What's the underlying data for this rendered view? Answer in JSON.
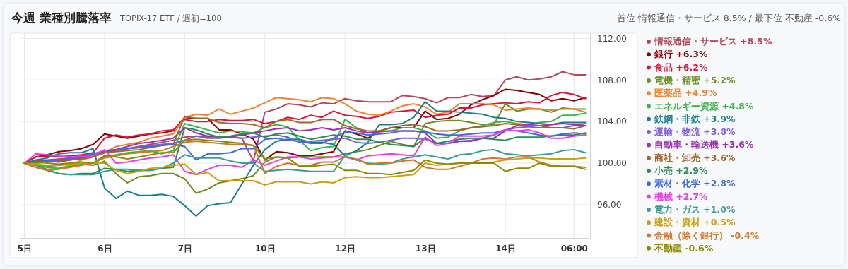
{
  "chart_data": {
    "type": "line",
    "title": "今週 業種別騰落率",
    "subtitle": "TOPIX-17 ETF / 週初=100",
    "annotations": [
      "首位 情報通信・サービス 8.5% / 最下位 不動産 -0.6%"
    ],
    "categories": [
      "5日",
      null,
      null,
      null,
      null,
      null,
      null,
      "6日",
      null,
      null,
      null,
      null,
      null,
      null,
      "7日",
      null,
      null,
      null,
      null,
      null,
      null,
      "10日",
      null,
      null,
      null,
      null,
      null,
      null,
      "12日",
      null,
      null,
      null,
      null,
      null,
      null,
      "13日",
      null,
      null,
      null,
      null,
      null,
      null,
      "14日",
      null,
      null,
      null,
      null,
      null,
      "06:00",
      null
    ],
    "ylim": [
      92.8,
      112.5
    ],
    "yticks": [
      {
        "value": 96,
        "label": "96.00"
      },
      {
        "value": 100,
        "label": "100.00"
      },
      {
        "value": 104,
        "label": "104.00"
      },
      {
        "value": 108,
        "label": "108.00"
      },
      {
        "value": 112,
        "label": "112.00"
      }
    ],
    "grid": true,
    "legend": "right",
    "marker": "none",
    "line_style": "solid",
    "series": [
      {
        "name": "情報通信・サービス +8.5%",
        "color": "#b5495b",
        "values": [
          100,
          100.2,
          100.3,
          100.4,
          100.5,
          100.6,
          100.8,
          101.0,
          101.2,
          101.4,
          101.6,
          101.8,
          102.0,
          102.2,
          102.5,
          102.6,
          102.5,
          102.6,
          102.5,
          102.4,
          100.2,
          104.9,
          105.2,
          105.7,
          105.6,
          105.4,
          105.8,
          105.7,
          106.2,
          106.0,
          105.9,
          105.9,
          105.9,
          106.5,
          106.4,
          106.2,
          105.8,
          106.3,
          106.3,
          106.6,
          106.4,
          106.5,
          108.0,
          108.3,
          108.0,
          108.1,
          108.3,
          108.8,
          108.5,
          108.5
        ]
      },
      {
        "name": "銀行 +6.3%",
        "color": "#8b0000",
        "values": [
          100,
          100.6,
          100.8,
          101.1,
          101.2,
          101.4,
          101.8,
          102.8,
          102.6,
          102.4,
          102.6,
          102.8,
          102.9,
          103.1,
          104.4,
          104.3,
          104.3,
          103.2,
          103.2,
          102.8,
          102.3,
          100.3,
          101.1,
          101.0,
          100.7,
          100.7,
          100.9,
          101.1,
          103.1,
          102.8,
          102.4,
          103.1,
          103.4,
          103.4,
          103.4,
          105.0,
          104.2,
          104.3,
          104.7,
          105.6,
          106.1,
          106.5,
          107.1,
          107.0,
          106.8,
          106.6,
          106.0,
          106.2,
          106.0,
          106.3
        ]
      },
      {
        "name": "食品 +6.2%",
        "color": "#dc143c",
        "values": [
          100,
          100.6,
          100.7,
          100.6,
          100.7,
          100.8,
          101.0,
          102.4,
          102.7,
          102.5,
          102.7,
          102.8,
          103.1,
          103.2,
          104.2,
          104.0,
          104.0,
          104.2,
          104.1,
          104.1,
          104.2,
          103.8,
          104.0,
          104.4,
          104.2,
          104.6,
          104.4,
          105.0,
          104.6,
          104.5,
          104.3,
          104.5,
          104.9,
          105.0,
          105.1,
          104.4,
          104.6,
          104.7,
          105.3,
          105.3,
          105.6,
          105.7,
          105.8,
          105.7,
          105.9,
          105.8,
          106.5,
          106.8,
          106.6,
          106.2
        ]
      },
      {
        "name": "電機・精密 +5.2%",
        "color": "#6b8e23",
        "values": [
          100,
          99.8,
          99.7,
          99.8,
          99.9,
          99.9,
          99.8,
          100.2,
          99.0,
          98.1,
          98.7,
          98.8,
          99.0,
          99.0,
          98.5,
          97.1,
          97.5,
          98.1,
          98.3,
          98.5,
          98.8,
          100.1,
          100.6,
          100.5,
          100.6,
          100.6,
          100.6,
          100.6,
          100.9,
          101.1,
          101.3,
          101.7,
          102.1,
          101.8,
          101.6,
          103.8,
          104.0,
          104.1,
          104.1,
          103.9,
          103.7,
          103.7,
          105.7,
          105.0,
          105.2,
          105.2,
          104.9,
          105.3,
          105.2,
          105.2
        ]
      },
      {
        "name": "医薬品 +4.9%",
        "color": "#f58231",
        "values": [
          100,
          99.6,
          99.4,
          99.5,
          99.8,
          100.3,
          100.6,
          101.0,
          101.6,
          101.8,
          102.0,
          102.4,
          102.6,
          102.8,
          104.4,
          104.7,
          104.6,
          105.2,
          104.7,
          105.0,
          105.3,
          105.8,
          106.3,
          106.2,
          106.1,
          105.9,
          106.3,
          106.2,
          105.7,
          105.0,
          104.7,
          104.6,
          105.0,
          105.5,
          105.7,
          105.4,
          104.7,
          104.9,
          105.7,
          105.7,
          105.7,
          105.6,
          105.1,
          105.2,
          105.3,
          105.2,
          105.1,
          105.2,
          105.2,
          104.9
        ]
      },
      {
        "name": "エネルギー資源 +4.8%",
        "color": "#3cb44b",
        "values": [
          100,
          99.8,
          99.6,
          99.5,
          99.7,
          99.9,
          100.0,
          100.6,
          100.8,
          101.0,
          101.1,
          101.2,
          100.9,
          101.2,
          103.8,
          103.5,
          103.2,
          102.9,
          103.1,
          103.0,
          102.9,
          103.4,
          103.7,
          103.5,
          102.2,
          101.2,
          101.5,
          101.6,
          104.2,
          103.4,
          102.9,
          103.1,
          103.1,
          103.4,
          103.4,
          103.1,
          102.4,
          102.5,
          103.1,
          103.4,
          103.6,
          103.9,
          104.0,
          103.8,
          103.7,
          103.9,
          104.0,
          104.6,
          104.6,
          104.8
        ]
      },
      {
        "name": "鉄鋼・非鉄 +3.9%",
        "color": "#1a7f8a",
        "values": [
          100,
          100.3,
          100.5,
          100.9,
          101.0,
          101.0,
          101.4,
          97.6,
          96.6,
          97.3,
          96.9,
          96.9,
          97.0,
          96.8,
          95.9,
          94.9,
          95.9,
          96.1,
          96.2,
          98.0,
          99.8,
          101.3,
          102.1,
          102.3,
          102.3,
          102.0,
          102.0,
          101.8,
          100.7,
          101.2,
          102.0,
          103.7,
          103.7,
          103.8,
          104.4,
          105.9,
          105.0,
          105.0,
          104.9,
          104.8,
          104.7,
          104.4,
          104.3,
          104.0,
          103.9,
          103.8,
          103.7,
          103.9,
          103.9,
          103.9
        ]
      },
      {
        "name": "運輸・物流 +3.8%",
        "color": "#7b5fd6",
        "values": [
          100,
          100.1,
          100.2,
          100.2,
          100.4,
          100.5,
          100.7,
          101.2,
          101.3,
          101.4,
          101.5,
          101.7,
          101.8,
          101.9,
          102.2,
          102.6,
          102.4,
          102.4,
          102.5,
          102.4,
          102.5,
          102.6,
          102.7,
          102.5,
          102.0,
          102.1,
          102.2,
          102.3,
          102.4,
          102.0,
          101.9,
          102.0,
          102.2,
          102.4,
          102.4,
          102.3,
          101.9,
          101.9,
          102.1,
          102.2,
          102.4,
          102.7,
          103.2,
          103.4,
          103.5,
          103.4,
          103.4,
          103.4,
          103.6,
          103.8
        ]
      },
      {
        "name": "自動車・輸送機 +3.6%",
        "color": "#9b30b0",
        "values": [
          100,
          100.1,
          100.2,
          100.1,
          100.3,
          100.5,
          100.7,
          101.1,
          101.3,
          101.6,
          101.9,
          102.0,
          102.2,
          102.4,
          103.4,
          102.9,
          102.6,
          102.5,
          102.5,
          102.7,
          102.9,
          103.1,
          103.3,
          103.4,
          103.1,
          103.2,
          103.4,
          103.2,
          103.4,
          103.1,
          102.9,
          103.0,
          103.1,
          103.1,
          103.1,
          102.9,
          101.9,
          101.9,
          102.1,
          102.1,
          102.4,
          102.4,
          103.1,
          103.6,
          103.7,
          103.6,
          103.7,
          103.8,
          103.7,
          103.6
        ]
      },
      {
        "name": "商社・卸売 +3.6%",
        "color": "#a0662a",
        "values": [
          100,
          100.0,
          100.1,
          100.2,
          100.3,
          100.4,
          100.6,
          101.0,
          101.1,
          101.2,
          101.3,
          101.5,
          101.7,
          101.8,
          104.5,
          104.3,
          104.3,
          103.9,
          103.8,
          103.8,
          103.7,
          103.4,
          104.0,
          104.2,
          103.9,
          103.9,
          104.2,
          104.2,
          103.6,
          103.3,
          103.1,
          103.1,
          103.4,
          103.6,
          103.7,
          103.5,
          103.1,
          103.1,
          103.2,
          103.4,
          103.5,
          103.6,
          103.8,
          103.7,
          103.6,
          103.6,
          103.4,
          103.4,
          103.3,
          103.6
        ]
      },
      {
        "name": "小売 +2.9%",
        "color": "#2e8b57",
        "values": [
          100,
          99.6,
          99.3,
          99.0,
          98.9,
          99.0,
          99.0,
          99.5,
          99.4,
          99.2,
          99.3,
          99.3,
          99.5,
          99.6,
          103.4,
          103.2,
          102.8,
          102.5,
          102.6,
          102.8,
          102.9,
          102.5,
          102.8,
          102.9,
          102.6,
          102.3,
          102.5,
          102.7,
          102.6,
          102.3,
          102.3,
          102.0,
          101.8,
          101.7,
          101.6,
          102.4,
          101.9,
          102.1,
          102.3,
          102.4,
          102.4,
          102.3,
          102.2,
          102.5,
          102.5,
          102.5,
          102.6,
          102.7,
          102.7,
          102.9
        ]
      },
      {
        "name": "素材・化学 +2.8%",
        "color": "#4169e1",
        "values": [
          100,
          100.1,
          100.2,
          100.3,
          100.5,
          100.7,
          100.9,
          101.2,
          101.3,
          101.4,
          101.5,
          101.6,
          101.7,
          101.8,
          101.6,
          100.3,
          100.9,
          100.9,
          101.0,
          101.4,
          101.4,
          102.3,
          102.4,
          102.2,
          102.1,
          101.9,
          101.9,
          102.4,
          103.0,
          102.9,
          102.7,
          102.8,
          102.9,
          103.1,
          103.1,
          103.0,
          102.8,
          102.7,
          102.7,
          102.8,
          102.9,
          102.9,
          103.2,
          103.1,
          102.9,
          102.7,
          102.6,
          102.8,
          102.9,
          102.8
        ]
      },
      {
        "name": "機械 +2.7%",
        "color": "#e83ee8",
        "values": [
          100,
          100.9,
          100.8,
          100.7,
          100.6,
          100.6,
          100.7,
          101.3,
          100.0,
          100.1,
          100.3,
          100.5,
          100.6,
          100.8,
          99.2,
          98.9,
          99.4,
          99.8,
          99.8,
          99.6,
          100.3,
          99.8,
          100.2,
          100.6,
          100.6,
          100.4,
          100.5,
          100.6,
          100.6,
          100.3,
          100.7,
          100.8,
          100.9,
          100.8,
          100.7,
          102.5,
          101.7,
          101.9,
          102.6,
          102.6,
          102.6,
          102.7,
          103.2,
          103.1,
          103.2,
          102.9,
          102.4,
          102.4,
          102.6,
          102.7
        ]
      },
      {
        "name": "電力・ガス +1.0%",
        "color": "#3a9c94",
        "values": [
          100,
          99.8,
          99.4,
          99.0,
          98.9,
          98.9,
          98.9,
          99.2,
          99.4,
          99.4,
          99.3,
          99.3,
          99.5,
          100.0,
          100.8,
          100.5,
          100.5,
          100.5,
          100.2,
          100.0,
          100.0,
          99.2,
          99.3,
          99.4,
          99.3,
          99.2,
          99.2,
          99.2,
          100.7,
          100.3,
          100.0,
          99.9,
          100.0,
          100.4,
          100.6,
          100.8,
          100.6,
          100.4,
          100.8,
          100.9,
          101.2,
          101.3,
          100.9,
          100.8,
          100.7,
          100.8,
          100.9,
          101.2,
          101.3,
          101.0
        ]
      },
      {
        "name": "建設・資材 +0.5%",
        "color": "#c9a010",
        "values": [
          100,
          99.9,
          99.8,
          99.8,
          99.9,
          100.0,
          100.0,
          100.0,
          99.3,
          99.0,
          99.2,
          99.5,
          99.6,
          99.8,
          99.9,
          98.9,
          99.1,
          98.3,
          98.3,
          98.3,
          98.3,
          97.9,
          98.2,
          98.2,
          98.2,
          98.0,
          98.2,
          98.1,
          98.6,
          98.7,
          98.6,
          98.6,
          98.7,
          98.8,
          98.9,
          100.0,
          99.8,
          99.9,
          100.0,
          100.0,
          100.0,
          100.1,
          100.3,
          100.4,
          100.5,
          100.5,
          100.4,
          100.4,
          100.4,
          100.5
        ]
      },
      {
        "name": "金融（除く銀行） -0.4%",
        "color": "#d2782d",
        "values": [
          100,
          99.6,
          99.3,
          99.4,
          99.6,
          99.8,
          100.0,
          100.5,
          100.7,
          100.9,
          101.0,
          101.1,
          101.2,
          101.6,
          102.0,
          102.1,
          102.0,
          101.9,
          101.8,
          101.8,
          101.7,
          99.0,
          99.7,
          100.0,
          99.8,
          99.8,
          100.1,
          100.1,
          100.6,
          100.4,
          99.9,
          100.0,
          100.0,
          100.2,
          100.3,
          99.6,
          99.4,
          99.4,
          99.7,
          100.0,
          100.4,
          100.5,
          100.4,
          100.6,
          100.6,
          100.1,
          99.8,
          99.7,
          99.7,
          99.6
        ]
      },
      {
        "name": "不動産 -0.6%",
        "color": "#8a8a00",
        "values": [
          100,
          100.1,
          100.0,
          99.9,
          100.0,
          100.1,
          100.0,
          100.7,
          100.6,
          100.4,
          100.6,
          100.8,
          101.0,
          101.0,
          102.2,
          102.3,
          102.2,
          102.1,
          102.0,
          101.9,
          101.7,
          100.4,
          100.6,
          100.5,
          99.7,
          99.7,
          99.8,
          99.9,
          99.3,
          99.3,
          99.0,
          99.0,
          98.9,
          99.1,
          99.3,
          100.3,
          100.0,
          99.9,
          100.0,
          100.0,
          100.0,
          100.0,
          99.2,
          99.5,
          99.5,
          100.0,
          99.7,
          99.7,
          99.7,
          99.4
        ]
      }
    ]
  }
}
